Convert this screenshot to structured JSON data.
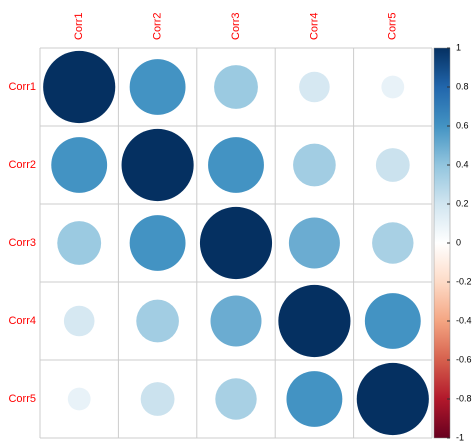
{
  "chart_data": {
    "type": "corrplot",
    "xcategories": [
      "Corr1",
      "Corr2",
      "Corr3",
      "Corr4",
      "Corr5"
    ],
    "ycategories": [
      "Corr1",
      "Corr2",
      "Corr3",
      "Corr4",
      "Corr5"
    ],
    "values": [
      [
        1,
        0.6,
        0.37,
        0.18,
        0.1
      ],
      [
        0.6,
        1,
        0.6,
        0.35,
        0.22
      ],
      [
        0.37,
        0.6,
        1,
        0.5,
        0.33
      ],
      [
        0.18,
        0.35,
        0.5,
        1,
        0.6
      ],
      [
        0.1,
        0.22,
        0.33,
        0.6,
        1
      ]
    ],
    "label_color": "#ff0000",
    "colors": [
      "#67001F",
      "#B2182B",
      "#D6604D",
      "#F4A582",
      "#FDDBC7",
      "#FFFFFF",
      "#D1E5F0",
      "#92C5DE",
      "#4393C3",
      "#2166AC",
      "#053061"
    ],
    "colorbar_lim": [
      -1,
      1
    ],
    "colorbar_ticks": [
      -1,
      -0.8,
      -0.6,
      -0.4,
      -0.2,
      0,
      0.2,
      0.4,
      0.6,
      0.8,
      1
    ]
  }
}
